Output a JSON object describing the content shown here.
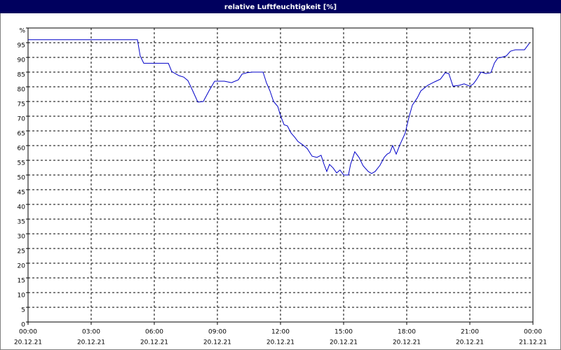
{
  "chart_data": {
    "type": "line",
    "title": "relative Luftfeuchtigkeit [%]",
    "x": [
      0,
      5.2,
      5.33,
      5.5,
      6.67,
      6.83,
      7.17,
      7.4,
      7.6,
      7.83,
      8.07,
      8.33,
      8.6,
      8.87,
      9.33,
      9.67,
      10,
      10.17,
      10.4,
      10.67,
      11.17,
      11.33,
      11.5,
      11.67,
      11.87,
      12,
      12.17,
      12.33,
      12.5,
      12.67,
      12.83,
      13.07,
      13.27,
      13.5,
      13.73,
      13.93,
      14.07,
      14.2,
      14.33,
      14.5,
      14.67,
      14.83,
      15,
      15.23,
      15.33,
      15.53,
      15.73,
      15.93,
      16.17,
      16.33,
      16.5,
      16.73,
      16.93,
      17.07,
      17.2,
      17.33,
      17.5,
      17.67,
      17.93,
      18.1,
      18.27,
      18.5,
      18.67,
      19,
      19.33,
      19.6,
      19.83,
      20,
      20.2,
      20.5,
      20.73,
      21,
      21.17,
      21.33,
      21.53,
      21.77,
      22,
      22.17,
      22.33,
      22.5,
      22.73,
      22.93,
      23.17,
      23.6,
      23.83
    ],
    "series": [
      {
        "color": "#0000c8",
        "values": [
          96,
          96,
          90.5,
          88,
          88,
          85.2,
          83.8,
          83.3,
          82.1,
          78.6,
          74.8,
          75,
          78.6,
          81.9,
          81.9,
          81.4,
          82.4,
          84.3,
          84.8,
          85,
          85,
          81.4,
          78.6,
          75,
          73.3,
          70.2,
          67.1,
          66.7,
          64.3,
          62.9,
          61.4,
          60.2,
          59,
          56.4,
          56,
          56.7,
          53.6,
          51.2,
          53.6,
          52.4,
          50.7,
          51.7,
          50,
          50,
          53.6,
          57.9,
          56,
          53.1,
          51.2,
          50.5,
          51.2,
          53.3,
          56,
          57.1,
          57.6,
          60,
          57.1,
          60.2,
          64.3,
          69.5,
          73.8,
          76.2,
          78.6,
          80.5,
          81.7,
          82.6,
          84.8,
          84.5,
          80.2,
          80.5,
          81,
          80.2,
          81,
          82.6,
          85,
          84.5,
          84.8,
          88.1,
          89.8,
          90,
          90.5,
          92.1,
          92.6,
          92.6,
          94.8
        ]
      }
    ],
    "xlim": [
      0,
      24
    ],
    "xticks": [
      {
        "value": 0,
        "label": "00:00"
      },
      {
        "value": 3,
        "label": "03:00"
      },
      {
        "value": 6,
        "label": "06:00"
      },
      {
        "value": 9,
        "label": "09:00"
      },
      {
        "value": 12,
        "label": "12:00"
      },
      {
        "value": 15,
        "label": "15:00"
      },
      {
        "value": 18,
        "label": "18:00"
      },
      {
        "value": 21,
        "label": "21:00"
      },
      {
        "value": 24,
        "label": "00:00"
      }
    ],
    "xtick_dates": [
      "20.12.21",
      "20.12.21",
      "20.12.21",
      "20.12.21",
      "20.12.21",
      "20.12.21",
      "20.12.21",
      "20.12.21",
      "21.12.21"
    ],
    "ylim": [
      0,
      100
    ],
    "yticks": [
      0,
      5,
      10,
      15,
      20,
      25,
      30,
      35,
      40,
      45,
      50,
      55,
      60,
      65,
      70,
      75,
      80,
      85,
      90,
      95,
      {
        "value": 100,
        "label": "%"
      }
    ],
    "grid": true
  }
}
